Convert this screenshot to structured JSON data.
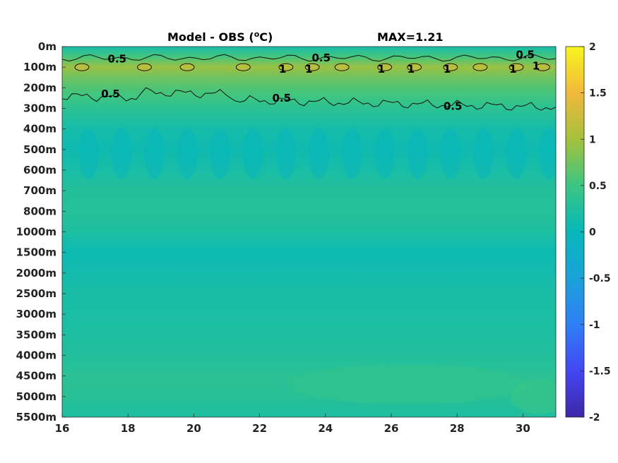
{
  "chart_data": {
    "type": "heatmap",
    "title": "Model - OBS (",
    "title_unit_sup": "o",
    "title_unit_tail": "C)",
    "max_label": "MAX=1.21",
    "xlabel": "",
    "ylabel": "",
    "x_ticks": [
      {
        "value": 16,
        "label": "16"
      },
      {
        "value": 18,
        "label": "18"
      },
      {
        "value": 20,
        "label": "20"
      },
      {
        "value": 22,
        "label": "22"
      },
      {
        "value": 24,
        "label": "24"
      },
      {
        "value": 26,
        "label": "26"
      },
      {
        "value": 28,
        "label": "28"
      },
      {
        "value": 30,
        "label": "30"
      }
    ],
    "xlim": [
      16,
      31
    ],
    "y_levels": [
      "0m",
      "100m",
      "200m",
      "300m",
      "400m",
      "500m",
      "600m",
      "700m",
      "800m",
      "1000m",
      "1500m",
      "2000m",
      "2500m",
      "3000m",
      "3500m",
      "4000m",
      "4500m",
      "5000m",
      "5500m"
    ],
    "colorbar": {
      "range": [
        -2,
        2
      ],
      "ticks": [
        {
          "value": 2,
          "label": "2"
        },
        {
          "value": 1.5,
          "label": "1.5"
        },
        {
          "value": 1,
          "label": "1"
        },
        {
          "value": 0.5,
          "label": "0.5"
        },
        {
          "value": 0,
          "label": "0"
        },
        {
          "value": -0.5,
          "label": "-0.5"
        },
        {
          "value": -1,
          "label": "-1"
        },
        {
          "value": -1.5,
          "label": "-1.5"
        },
        {
          "value": -2,
          "label": "-2"
        }
      ],
      "colormap": "parula"
    },
    "level_profile": [
      {
        "level": "0m",
        "value": 0.15
      },
      {
        "level": "50m",
        "value": 0.55
      },
      {
        "level": "100m",
        "value": 0.95
      },
      {
        "level": "150m",
        "value": 0.75
      },
      {
        "level": "200m",
        "value": 0.6
      },
      {
        "level": "250m",
        "value": 0.5
      },
      {
        "level": "300m",
        "value": 0.35
      },
      {
        "level": "400m",
        "value": 0.15
      },
      {
        "level": "500m",
        "value": 0.08
      },
      {
        "level": "600m",
        "value": 0.18
      },
      {
        "level": "700m",
        "value": 0.28
      },
      {
        "level": "800m",
        "value": 0.3
      },
      {
        "level": "1000m",
        "value": 0.22
      },
      {
        "level": "1500m",
        "value": 0.06
      },
      {
        "level": "2000m",
        "value": 0.12
      },
      {
        "level": "2500m",
        "value": 0.18
      },
      {
        "level": "3000m",
        "value": 0.2
      },
      {
        "level": "3500m",
        "value": 0.22
      },
      {
        "level": "4000m",
        "value": 0.26
      },
      {
        "level": "4500m",
        "value": 0.34
      },
      {
        "level": "5000m",
        "value": 0.32
      },
      {
        "level": "5500m",
        "value": 0.22
      }
    ],
    "contours": [
      {
        "level": 0.5,
        "depth_level": "~60m",
        "label": "0.5"
      },
      {
        "level": 1,
        "depth_level": "~100m",
        "label": "1"
      },
      {
        "level": 0.5,
        "depth_level": "~250-300m",
        "label": "0.5"
      }
    ],
    "contour_labels": [
      {
        "text": "0.5",
        "x": 17.6,
        "depth": "60m"
      },
      {
        "text": "0.5",
        "x": 23.8,
        "depth": "55m"
      },
      {
        "text": "0.5",
        "x": 30.0,
        "depth": "40m"
      },
      {
        "text": "1",
        "x": 22.8,
        "depth": "110m"
      },
      {
        "text": "1",
        "x": 23.6,
        "depth": "110m"
      },
      {
        "text": "1",
        "x": 25.8,
        "depth": "110m"
      },
      {
        "text": "1",
        "x": 26.7,
        "depth": "110m"
      },
      {
        "text": "1",
        "x": 27.8,
        "depth": "110m"
      },
      {
        "text": "1",
        "x": 29.8,
        "depth": "110m"
      },
      {
        "text": "1",
        "x": 30.5,
        "depth": "95m"
      },
      {
        "text": "0.5",
        "x": 17.4,
        "depth": "230m"
      },
      {
        "text": "0.5",
        "x": 22.6,
        "depth": "250m"
      },
      {
        "text": "0.5",
        "x": 27.8,
        "depth": "290m"
      }
    ],
    "grid": false,
    "legend": "colorbar-right"
  }
}
